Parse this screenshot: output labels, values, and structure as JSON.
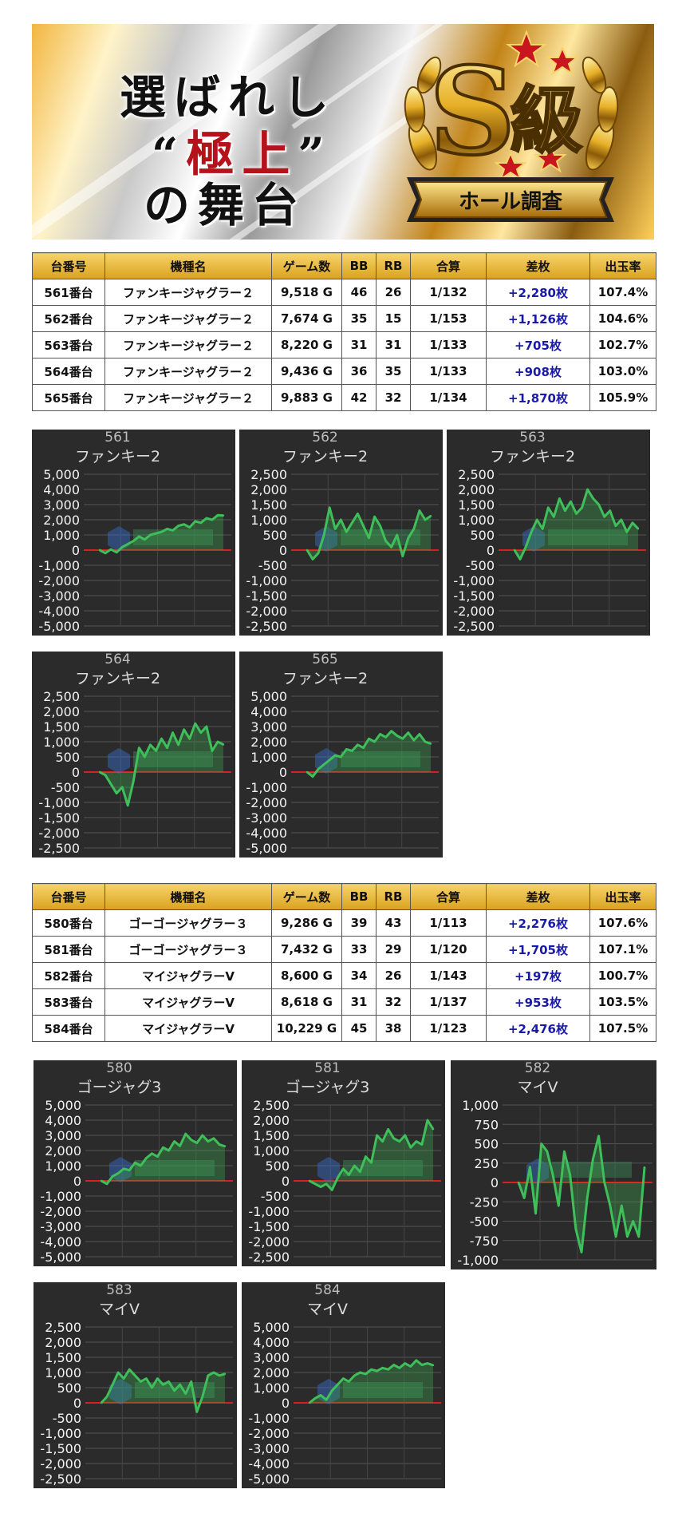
{
  "banner": {
    "line1": "選ばれし",
    "line2_open": "“",
    "line2_red": "極上",
    "line2_close": "”",
    "line3": "の舞台",
    "badge_letter": "S",
    "badge_kanji": "級",
    "badge_ribbon": "ホール調査",
    "gold": "#d9a21f"
  },
  "table1": {
    "headers": [
      "台番号",
      "機種名",
      "ゲーム数",
      "BB",
      "RB",
      "合算",
      "差枚",
      "出玉率"
    ],
    "rows": [
      [
        "561番台",
        "ファンキージャグラー２",
        "9,518 G",
        "46",
        "26",
        "1/132",
        "+2,280枚",
        "107.4%"
      ],
      [
        "562番台",
        "ファンキージャグラー２",
        "7,674 G",
        "35",
        "15",
        "1/153",
        "+1,126枚",
        "104.6%"
      ],
      [
        "563番台",
        "ファンキージャグラー２",
        "8,220 G",
        "31",
        "31",
        "1/133",
        "+705枚",
        "102.7%"
      ],
      [
        "564番台",
        "ファンキージャグラー２",
        "9,436 G",
        "36",
        "35",
        "1/133",
        "+908枚",
        "103.0%"
      ],
      [
        "565番台",
        "ファンキージャグラー２",
        "9,883 G",
        "42",
        "32",
        "1/134",
        "+1,870枚",
        "105.9%"
      ]
    ]
  },
  "table2": {
    "headers": [
      "台番号",
      "機種名",
      "ゲーム数",
      "BB",
      "RB",
      "合算",
      "差枚",
      "出玉率"
    ],
    "rows": [
      [
        "580番台",
        "ゴーゴージャグラー３",
        "9,286 G",
        "39",
        "43",
        "1/113",
        "+2,276枚",
        "107.6%"
      ],
      [
        "581番台",
        "ゴーゴージャグラー３",
        "7,432 G",
        "33",
        "29",
        "1/120",
        "+1,705枚",
        "107.1%"
      ],
      [
        "582番台",
        "マイジャグラーV",
        "8,600 G",
        "34",
        "26",
        "1/143",
        "+197枚",
        "100.7%"
      ],
      [
        "583番台",
        "マイジャグラーV",
        "8,618 G",
        "31",
        "32",
        "1/137",
        "+953枚",
        "103.5%"
      ],
      [
        "584番台",
        "マイジャグラーV",
        "10,229 G",
        "45",
        "38",
        "1/123",
        "+2,476枚",
        "107.5%"
      ]
    ]
  },
  "chart_data": [
    {
      "type": "line",
      "title": "561",
      "subtitle": "ファンキー2",
      "ylim": [
        -5000,
        5000
      ],
      "yticks": [
        "5,000",
        "4,000",
        "3,000",
        "2,000",
        "1,000",
        "0",
        "-1,000",
        "-2,000",
        "-3,000",
        "-4,000",
        "-5,000"
      ],
      "series": [
        {
          "values": [
            0,
            -200,
            50,
            -150,
            200,
            400,
            600,
            900,
            700,
            1000,
            1100,
            1200,
            1400,
            1300,
            1600,
            1700,
            1500,
            1900,
            1800,
            2100,
            2000,
            2300,
            2280
          ]
        }
      ]
    },
    {
      "type": "line",
      "title": "562",
      "subtitle": "ファンキー2",
      "ylim": [
        -2500,
        2500
      ],
      "yticks": [
        "2,500",
        "2,000",
        "1,500",
        "1,000",
        "500",
        "0",
        "-500",
        "-1,000",
        "-1,500",
        "-2,000",
        "-2,500"
      ],
      "series": [
        {
          "values": [
            0,
            -300,
            -100,
            500,
            1400,
            700,
            1000,
            600,
            900,
            1200,
            800,
            400,
            1100,
            800,
            300,
            100,
            500,
            -200,
            400,
            700,
            1300,
            1000,
            1126
          ]
        }
      ]
    },
    {
      "type": "line",
      "title": "563",
      "subtitle": "ファンキー2",
      "ylim": [
        -2500,
        2500
      ],
      "yticks": [
        "2,500",
        "2,000",
        "1,500",
        "1,000",
        "500",
        "0",
        "-500",
        "-1,000",
        "-1,500",
        "-2,000",
        "-2,500"
      ],
      "series": [
        {
          "values": [
            0,
            -300,
            100,
            600,
            1000,
            700,
            1400,
            1100,
            1700,
            1300,
            1600,
            1200,
            1400,
            2000,
            1700,
            1500,
            1100,
            1300,
            800,
            1000,
            600,
            900,
            705
          ]
        }
      ]
    },
    {
      "type": "line",
      "title": "564",
      "subtitle": "ファンキー2",
      "ylim": [
        -2500,
        2500
      ],
      "yticks": [
        "2,500",
        "2,000",
        "1,500",
        "1,000",
        "500",
        "0",
        "-500",
        "-1,000",
        "-1,500",
        "-2,000",
        "-2,500"
      ],
      "series": [
        {
          "values": [
            0,
            -100,
            -400,
            -700,
            -500,
            -1100,
            -300,
            800,
            500,
            900,
            700,
            1100,
            800,
            1300,
            900,
            1400,
            1100,
            1600,
            1300,
            1500,
            700,
            1000,
            908
          ]
        }
      ]
    },
    {
      "type": "line",
      "title": "565",
      "subtitle": "ファンキー2",
      "ylim": [
        -5000,
        5000
      ],
      "yticks": [
        "5,000",
        "4,000",
        "3,000",
        "2,000",
        "1,000",
        "0",
        "-1,000",
        "-2,000",
        "-3,000",
        "-4,000",
        "-5,000"
      ],
      "series": [
        {
          "values": [
            0,
            -300,
            200,
            500,
            800,
            1100,
            1000,
            1500,
            1400,
            1800,
            1600,
            2200,
            2000,
            2500,
            2300,
            2700,
            2400,
            2200,
            2600,
            2100,
            2500,
            2000,
            1870
          ]
        }
      ]
    },
    {
      "type": "line",
      "title": "580",
      "subtitle": "ゴージャグ3",
      "ylim": [
        -5000,
        5000
      ],
      "yticks": [
        "5,000",
        "4,000",
        "3,000",
        "2,000",
        "1,000",
        "0",
        "-1,000",
        "-2,000",
        "-3,000",
        "-4,000",
        "-5,000"
      ],
      "series": [
        {
          "values": [
            0,
            -200,
            300,
            500,
            800,
            700,
            1200,
            1000,
            1500,
            1800,
            1600,
            2200,
            2000,
            2600,
            2300,
            3100,
            2700,
            2500,
            3000,
            2600,
            2800,
            2400,
            2276
          ]
        }
      ]
    },
    {
      "type": "line",
      "title": "581",
      "subtitle": "ゴージャグ3",
      "ylim": [
        -2500,
        2500
      ],
      "yticks": [
        "2,500",
        "2,000",
        "1,500",
        "1,000",
        "500",
        "0",
        "-500",
        "-1,000",
        "-1,500",
        "-2,000",
        "-2,500"
      ],
      "series": [
        {
          "values": [
            0,
            -100,
            -200,
            -100,
            -300,
            100,
            400,
            200,
            500,
            300,
            800,
            600,
            1500,
            1300,
            1700,
            1400,
            1300,
            1500,
            1100,
            1300,
            1200,
            2000,
            1705
          ]
        }
      ]
    },
    {
      "type": "line",
      "title": "582",
      "subtitle": "マイV",
      "ylim": [
        -1000,
        1000
      ],
      "yticks": [
        "1,000",
        "750",
        "500",
        "250",
        "0",
        "-250",
        "-500",
        "-750",
        "-1,000"
      ],
      "series": [
        {
          "values": [
            0,
            -200,
            200,
            -400,
            500,
            400,
            100,
            -300,
            400,
            100,
            -600,
            -900,
            -200,
            300,
            600,
            0,
            -300,
            -700,
            -300,
            -700,
            -500,
            -700,
            197
          ]
        }
      ]
    },
    {
      "type": "line",
      "title": "583",
      "subtitle": "マイV",
      "ylim": [
        -2500,
        2500
      ],
      "yticks": [
        "2,500",
        "2,000",
        "1,500",
        "1,000",
        "500",
        "0",
        "-500",
        "-1,000",
        "-1,500",
        "-2,000",
        "-2,500"
      ],
      "series": [
        {
          "values": [
            0,
            200,
            600,
            1000,
            800,
            1100,
            900,
            700,
            800,
            500,
            800,
            600,
            700,
            400,
            600,
            300,
            700,
            -300,
            200,
            900,
            1000,
            900,
            953
          ]
        }
      ]
    },
    {
      "type": "line",
      "title": "584",
      "subtitle": "マイV",
      "ylim": [
        -5000,
        5000
      ],
      "yticks": [
        "5,000",
        "4,000",
        "3,000",
        "2,000",
        "1,000",
        "0",
        "-1,000",
        "-2,000",
        "-3,000",
        "-4,000",
        "-5,000"
      ],
      "series": [
        {
          "values": [
            0,
            300,
            500,
            200,
            800,
            1200,
            1600,
            1400,
            1800,
            2000,
            1900,
            2200,
            2100,
            2300,
            2200,
            2500,
            2300,
            2600,
            2400,
            2800,
            2500,
            2600,
            2476
          ]
        }
      ]
    }
  ]
}
